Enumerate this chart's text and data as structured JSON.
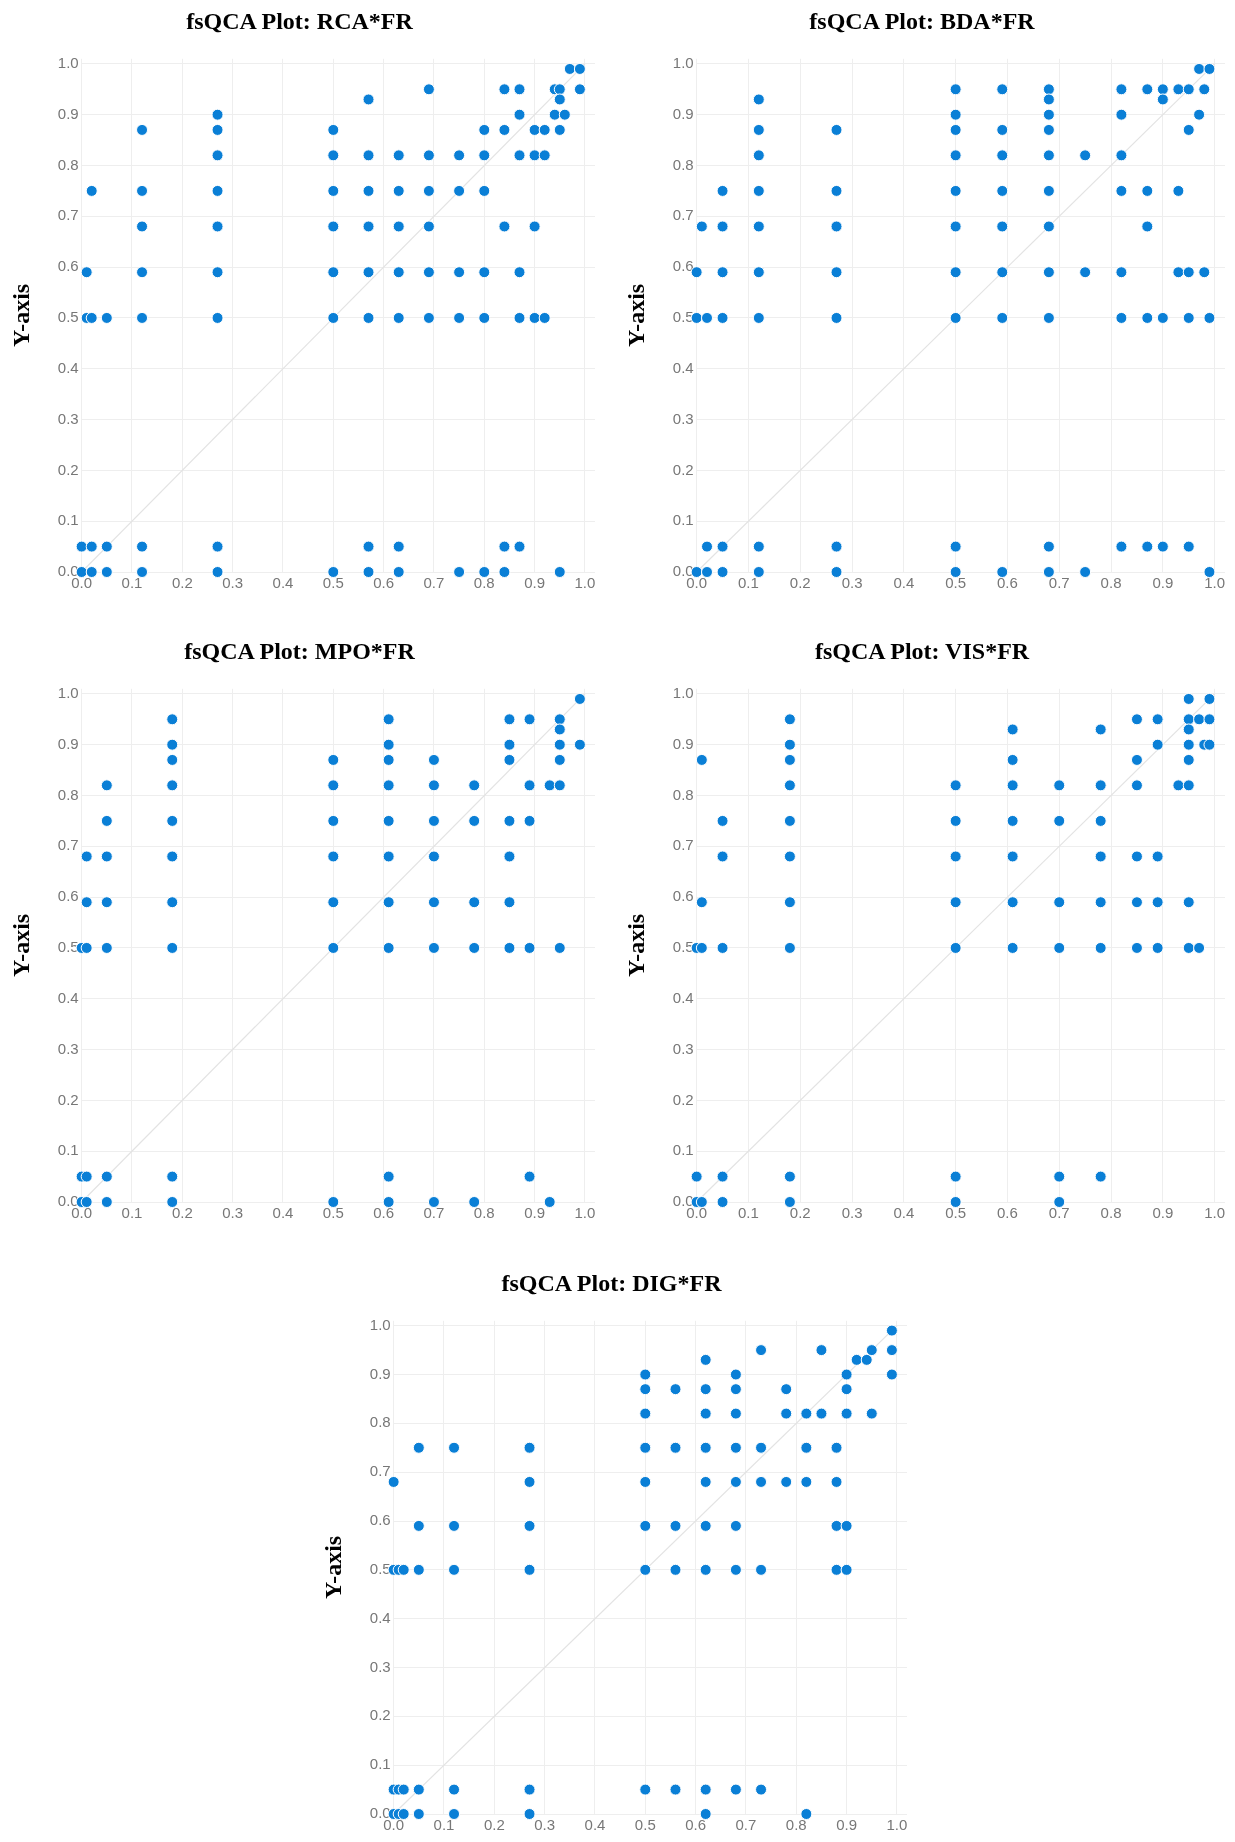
{
  "chart_data": [
    {
      "type": "scatter",
      "title": "fsQCA Plot: RCA*FR",
      "ylabel": "Y-axis",
      "xlim": [
        0,
        1.02
      ],
      "ylim": [
        0,
        1.01
      ],
      "grid": true,
      "legend": false,
      "marker": "circle",
      "xticks": [
        {
          "value": 0,
          "label": "0.0"
        },
        {
          "value": 0.1,
          "label": "0.1"
        },
        {
          "value": 0.2,
          "label": "0.2"
        },
        {
          "value": 0.3,
          "label": "0.3"
        },
        {
          "value": 0.4,
          "label": "0.4"
        },
        {
          "value": 0.5,
          "label": "0.5"
        },
        {
          "value": 0.6,
          "label": "0.6"
        },
        {
          "value": 0.7,
          "label": "0.7"
        },
        {
          "value": 0.8,
          "label": "0.8"
        },
        {
          "value": 0.9,
          "label": "0.9"
        },
        {
          "value": 1,
          "label": "1.0"
        }
      ],
      "yticks": [
        {
          "value": 0,
          "label": "0.0"
        },
        {
          "value": 0.1,
          "label": "0.1"
        },
        {
          "value": 0.2,
          "label": "0.2"
        },
        {
          "value": 0.3,
          "label": "0.3"
        },
        {
          "value": 0.4,
          "label": "0.4"
        },
        {
          "value": 0.5,
          "label": "0.5"
        },
        {
          "value": 0.6,
          "label": "0.6"
        },
        {
          "value": 0.7,
          "label": "0.7"
        },
        {
          "value": 0.8,
          "label": "0.8"
        },
        {
          "value": 0.9,
          "label": "0.9"
        },
        {
          "value": 1,
          "label": "1.0"
        }
      ],
      "series": [
        {
          "type": "line",
          "color": "#e3e3e3",
          "marker": "none",
          "x": [
            0,
            1
          ],
          "values": [
            0,
            1
          ]
        },
        {
          "color": "#0a7fd6",
          "x": [
            0,
            0,
            0.01,
            0.01,
            0.02,
            0.02,
            0.02,
            0.02,
            0.05,
            0.05,
            0.05,
            0.12,
            0.12,
            0.12,
            0.12,
            0.12,
            0.12,
            0.12,
            0.27,
            0.27,
            0.27,
            0.27,
            0.27,
            0.27,
            0.27,
            0.27,
            0.27,
            0.5,
            0.5,
            0.5,
            0.5,
            0.5,
            0.5,
            0.5,
            0.57,
            0.57,
            0.57,
            0.57,
            0.57,
            0.57,
            0.57,
            0.57,
            0.63,
            0.63,
            0.63,
            0.63,
            0.63,
            0.63,
            0.63,
            0.69,
            0.69,
            0.69,
            0.69,
            0.69,
            0.69,
            0.75,
            0.75,
            0.75,
            0.75,
            0.75,
            0.8,
            0.8,
            0.8,
            0.8,
            0.8,
            0.8,
            0.84,
            0.84,
            0.84,
            0.84,
            0.84,
            0.87,
            0.87,
            0.87,
            0.87,
            0.87,
            0.87,
            0.9,
            0.9,
            0.9,
            0.9,
            0.92,
            0.92,
            0.92,
            0.94,
            0.94,
            0.95,
            0.95,
            0.95,
            0.95,
            0.96,
            0.97,
            0.99,
            0.99
          ],
          "values": [
            0.05,
            0,
            0.59,
            0.5,
            0.75,
            0.5,
            0.05,
            0,
            0.5,
            0.05,
            0,
            0.87,
            0.75,
            0.68,
            0.59,
            0.5,
            0.05,
            0,
            0.9,
            0.87,
            0.82,
            0.75,
            0.68,
            0.59,
            0.5,
            0.05,
            0,
            0.87,
            0.82,
            0.75,
            0.68,
            0.59,
            0.5,
            0,
            0.93,
            0.82,
            0.75,
            0.68,
            0.59,
            0.5,
            0.05,
            0,
            0.82,
            0.75,
            0.68,
            0.59,
            0.5,
            0.05,
            0,
            0.95,
            0.82,
            0.75,
            0.68,
            0.59,
            0.5,
            0.82,
            0.75,
            0.59,
            0.5,
            0,
            0.87,
            0.82,
            0.75,
            0.59,
            0.5,
            0,
            0.95,
            0.87,
            0.68,
            0.05,
            0,
            0.95,
            0.9,
            0.82,
            0.59,
            0.5,
            0.05,
            0.87,
            0.82,
            0.68,
            0.5,
            0.87,
            0.82,
            0.5,
            0.95,
            0.9,
            0.95,
            0.93,
            0.87,
            0,
            0.9,
            0.99,
            0.99,
            0.95
          ]
        }
      ]
    },
    {
      "type": "scatter",
      "title": "fsQCA Plot: BDA*FR",
      "ylabel": "Y-axis",
      "xlim": [
        0,
        1.02
      ],
      "ylim": [
        0,
        1.01
      ],
      "grid": true,
      "legend": false,
      "marker": "circle",
      "xticks": [
        {
          "value": 0,
          "label": "0.0"
        },
        {
          "value": 0.1,
          "label": "0.1"
        },
        {
          "value": 0.2,
          "label": "0.2"
        },
        {
          "value": 0.3,
          "label": "0.3"
        },
        {
          "value": 0.4,
          "label": "0.4"
        },
        {
          "value": 0.5,
          "label": "0.5"
        },
        {
          "value": 0.6,
          "label": "0.6"
        },
        {
          "value": 0.7,
          "label": "0.7"
        },
        {
          "value": 0.8,
          "label": "0.8"
        },
        {
          "value": 0.9,
          "label": "0.9"
        },
        {
          "value": 1,
          "label": "1.0"
        }
      ],
      "yticks": [
        {
          "value": 0,
          "label": "0.0"
        },
        {
          "value": 0.1,
          "label": "0.1"
        },
        {
          "value": 0.2,
          "label": "0.2"
        },
        {
          "value": 0.3,
          "label": "0.3"
        },
        {
          "value": 0.4,
          "label": "0.4"
        },
        {
          "value": 0.5,
          "label": "0.5"
        },
        {
          "value": 0.6,
          "label": "0.6"
        },
        {
          "value": 0.7,
          "label": "0.7"
        },
        {
          "value": 0.8,
          "label": "0.8"
        },
        {
          "value": 0.9,
          "label": "0.9"
        },
        {
          "value": 1,
          "label": "1.0"
        }
      ],
      "series": [
        {
          "type": "line",
          "color": "#e3e3e3",
          "marker": "none",
          "x": [
            0,
            1
          ],
          "values": [
            0,
            1
          ]
        },
        {
          "color": "#0a7fd6",
          "x": [
            0,
            0,
            0,
            0.01,
            0.02,
            0.02,
            0.02,
            0.05,
            0.05,
            0.05,
            0.05,
            0.05,
            0.05,
            0.12,
            0.12,
            0.12,
            0.12,
            0.12,
            0.12,
            0.12,
            0.12,
            0.12,
            0.27,
            0.27,
            0.27,
            0.27,
            0.27,
            0.27,
            0.27,
            0.5,
            0.5,
            0.5,
            0.5,
            0.5,
            0.5,
            0.5,
            0.5,
            0.5,
            0.5,
            0.59,
            0.59,
            0.59,
            0.59,
            0.59,
            0.59,
            0.59,
            0.59,
            0.68,
            0.68,
            0.68,
            0.68,
            0.68,
            0.68,
            0.68,
            0.68,
            0.68,
            0.68,
            0.68,
            0.75,
            0.75,
            0.75,
            0.82,
            0.82,
            0.82,
            0.82,
            0.82,
            0.82,
            0.82,
            0.87,
            0.87,
            0.87,
            0.87,
            0.87,
            0.9,
            0.9,
            0.9,
            0.9,
            0.93,
            0.93,
            0.93,
            0.95,
            0.95,
            0.95,
            0.95,
            0.95,
            0.97,
            0.97,
            0.98,
            0.98,
            0.99,
            0.99,
            0.99
          ],
          "values": [
            0.59,
            0.5,
            0,
            0.68,
            0.5,
            0.05,
            0,
            0.75,
            0.68,
            0.59,
            0.5,
            0.05,
            0,
            0.93,
            0.87,
            0.82,
            0.75,
            0.68,
            0.59,
            0.5,
            0.05,
            0,
            0.87,
            0.75,
            0.68,
            0.59,
            0.5,
            0.05,
            0,
            0.95,
            0.9,
            0.87,
            0.82,
            0.75,
            0.68,
            0.59,
            0.5,
            0.05,
            0,
            0.95,
            0.87,
            0.82,
            0.75,
            0.68,
            0.59,
            0.5,
            0,
            0.95,
            0.93,
            0.9,
            0.87,
            0.82,
            0.75,
            0.68,
            0.59,
            0.5,
            0.05,
            0,
            0.82,
            0.59,
            0,
            0.95,
            0.9,
            0.82,
            0.75,
            0.59,
            0.5,
            0.05,
            0.95,
            0.75,
            0.68,
            0.5,
            0.05,
            0.95,
            0.93,
            0.5,
            0.05,
            0.95,
            0.75,
            0.59,
            0.95,
            0.87,
            0.59,
            0.5,
            0.05,
            0.99,
            0.9,
            0.95,
            0.59,
            0.99,
            0.5,
            0
          ]
        }
      ]
    },
    {
      "type": "scatter",
      "title": "fsQCA Plot: MPO*FR",
      "ylabel": "Y-axis",
      "xlim": [
        0,
        1.02
      ],
      "ylim": [
        0,
        1.01
      ],
      "grid": true,
      "legend": false,
      "marker": "circle",
      "xticks": [
        {
          "value": 0,
          "label": "0.0"
        },
        {
          "value": 0.1,
          "label": "0.1"
        },
        {
          "value": 0.2,
          "label": "0.2"
        },
        {
          "value": 0.3,
          "label": "0.3"
        },
        {
          "value": 0.4,
          "label": "0.4"
        },
        {
          "value": 0.5,
          "label": "0.5"
        },
        {
          "value": 0.6,
          "label": "0.6"
        },
        {
          "value": 0.7,
          "label": "0.7"
        },
        {
          "value": 0.8,
          "label": "0.8"
        },
        {
          "value": 0.9,
          "label": "0.9"
        },
        {
          "value": 1,
          "label": "1.0"
        }
      ],
      "yticks": [
        {
          "value": 0,
          "label": "0.0"
        },
        {
          "value": 0.1,
          "label": "0.1"
        },
        {
          "value": 0.2,
          "label": "0.2"
        },
        {
          "value": 0.3,
          "label": "0.3"
        },
        {
          "value": 0.4,
          "label": "0.4"
        },
        {
          "value": 0.5,
          "label": "0.5"
        },
        {
          "value": 0.6,
          "label": "0.6"
        },
        {
          "value": 0.7,
          "label": "0.7"
        },
        {
          "value": 0.8,
          "label": "0.8"
        },
        {
          "value": 0.9,
          "label": "0.9"
        },
        {
          "value": 1,
          "label": "1.0"
        }
      ],
      "series": [
        {
          "type": "line",
          "color": "#e3e3e3",
          "marker": "none",
          "x": [
            0,
            1
          ],
          "values": [
            0,
            1
          ]
        },
        {
          "color": "#0a7fd6",
          "x": [
            0,
            0,
            0,
            0.01,
            0.01,
            0.01,
            0.01,
            0.01,
            0.05,
            0.05,
            0.05,
            0.05,
            0.05,
            0.05,
            0.05,
            0.18,
            0.18,
            0.18,
            0.18,
            0.18,
            0.18,
            0.18,
            0.18,
            0.18,
            0.18,
            0.5,
            0.5,
            0.5,
            0.5,
            0.5,
            0.5,
            0.5,
            0.61,
            0.61,
            0.61,
            0.61,
            0.61,
            0.61,
            0.61,
            0.61,
            0.61,
            0.61,
            0.7,
            0.7,
            0.7,
            0.7,
            0.7,
            0.7,
            0.7,
            0.78,
            0.78,
            0.78,
            0.78,
            0.78,
            0.85,
            0.85,
            0.85,
            0.85,
            0.85,
            0.85,
            0.85,
            0.89,
            0.89,
            0.89,
            0.89,
            0.89,
            0.93,
            0.93,
            0.95,
            0.95,
            0.95,
            0.95,
            0.95,
            0.95,
            0.99,
            0.99
          ],
          "values": [
            0.5,
            0.05,
            0,
            0.68,
            0.59,
            0.5,
            0.05,
            0,
            0.82,
            0.75,
            0.68,
            0.59,
            0.5,
            0.05,
            0,
            0.95,
            0.9,
            0.87,
            0.82,
            0.75,
            0.68,
            0.59,
            0.5,
            0.05,
            0,
            0.87,
            0.82,
            0.75,
            0.68,
            0.59,
            0.5,
            0,
            0.95,
            0.9,
            0.87,
            0.82,
            0.75,
            0.68,
            0.59,
            0.5,
            0.05,
            0,
            0.87,
            0.82,
            0.75,
            0.68,
            0.59,
            0.5,
            0,
            0.82,
            0.75,
            0.59,
            0.5,
            0,
            0.95,
            0.9,
            0.87,
            0.75,
            0.68,
            0.59,
            0.5,
            0.95,
            0.82,
            0.75,
            0.5,
            0.05,
            0.82,
            0,
            0.95,
            0.93,
            0.9,
            0.87,
            0.82,
            0.5,
            0.99,
            0.9
          ]
        }
      ]
    },
    {
      "type": "scatter",
      "title": "fsQCA Plot: VIS*FR",
      "ylabel": "Y-axis",
      "xlim": [
        0,
        1.02
      ],
      "ylim": [
        0,
        1.01
      ],
      "grid": true,
      "legend": false,
      "marker": "circle",
      "xticks": [
        {
          "value": 0,
          "label": "0.0"
        },
        {
          "value": 0.1,
          "label": "0.1"
        },
        {
          "value": 0.2,
          "label": "0.2"
        },
        {
          "value": 0.3,
          "label": "0.3"
        },
        {
          "value": 0.4,
          "label": "0.4"
        },
        {
          "value": 0.5,
          "label": "0.5"
        },
        {
          "value": 0.6,
          "label": "0.6"
        },
        {
          "value": 0.7,
          "label": "0.7"
        },
        {
          "value": 0.8,
          "label": "0.8"
        },
        {
          "value": 0.9,
          "label": "0.9"
        },
        {
          "value": 1,
          "label": "1.0"
        }
      ],
      "yticks": [
        {
          "value": 0,
          "label": "0.0"
        },
        {
          "value": 0.1,
          "label": "0.1"
        },
        {
          "value": 0.2,
          "label": "0.2"
        },
        {
          "value": 0.3,
          "label": "0.3"
        },
        {
          "value": 0.4,
          "label": "0.4"
        },
        {
          "value": 0.5,
          "label": "0.5"
        },
        {
          "value": 0.6,
          "label": "0.6"
        },
        {
          "value": 0.7,
          "label": "0.7"
        },
        {
          "value": 0.8,
          "label": "0.8"
        },
        {
          "value": 0.9,
          "label": "0.9"
        },
        {
          "value": 1,
          "label": "1.0"
        }
      ],
      "series": [
        {
          "type": "line",
          "color": "#e3e3e3",
          "marker": "none",
          "x": [
            0,
            1
          ],
          "values": [
            0,
            1
          ]
        },
        {
          "color": "#0a7fd6",
          "x": [
            0,
            0,
            0,
            0.01,
            0.01,
            0.01,
            0.01,
            0.05,
            0.05,
            0.05,
            0.05,
            0.05,
            0.18,
            0.18,
            0.18,
            0.18,
            0.18,
            0.18,
            0.18,
            0.18,
            0.18,
            0.18,
            0.5,
            0.5,
            0.5,
            0.5,
            0.5,
            0.5,
            0.5,
            0.61,
            0.61,
            0.61,
            0.61,
            0.61,
            0.61,
            0.61,
            0.7,
            0.7,
            0.7,
            0.7,
            0.7,
            0.7,
            0.78,
            0.78,
            0.78,
            0.78,
            0.78,
            0.78,
            0.78,
            0.85,
            0.85,
            0.85,
            0.85,
            0.85,
            0.85,
            0.89,
            0.89,
            0.89,
            0.89,
            0.89,
            0.93,
            0.95,
            0.95,
            0.95,
            0.95,
            0.95,
            0.95,
            0.95,
            0.95,
            0.97,
            0.97,
            0.98,
            0.99,
            0.99,
            0.99
          ],
          "values": [
            0.5,
            0.05,
            0,
            0.87,
            0.59,
            0.5,
            0,
            0.75,
            0.68,
            0.5,
            0.05,
            0,
            0.95,
            0.9,
            0.87,
            0.82,
            0.75,
            0.68,
            0.59,
            0.5,
            0.05,
            0,
            0.82,
            0.75,
            0.68,
            0.59,
            0.5,
            0.05,
            0,
            0.93,
            0.87,
            0.82,
            0.75,
            0.68,
            0.59,
            0.5,
            0.82,
            0.75,
            0.59,
            0.5,
            0.05,
            0,
            0.93,
            0.82,
            0.75,
            0.68,
            0.59,
            0.5,
            0.05,
            0.95,
            0.87,
            0.82,
            0.68,
            0.59,
            0.5,
            0.95,
            0.9,
            0.68,
            0.59,
            0.5,
            0.82,
            0.99,
            0.95,
            0.93,
            0.9,
            0.87,
            0.82,
            0.59,
            0.5,
            0.95,
            0.5,
            0.9,
            0.99,
            0.95,
            0.9
          ]
        }
      ]
    },
    {
      "type": "scatter",
      "title": "fsQCA Plot: DIG*FR",
      "ylabel": "Y-axis",
      "xlim": [
        0,
        1.02
      ],
      "ylim": [
        0,
        1.01
      ],
      "grid": true,
      "legend": false,
      "marker": "circle",
      "xticks": [
        {
          "value": 0,
          "label": "0.0"
        },
        {
          "value": 0.1,
          "label": "0.1"
        },
        {
          "value": 0.2,
          "label": "0.2"
        },
        {
          "value": 0.3,
          "label": "0.3"
        },
        {
          "value": 0.4,
          "label": "0.4"
        },
        {
          "value": 0.5,
          "label": "0.5"
        },
        {
          "value": 0.6,
          "label": "0.6"
        },
        {
          "value": 0.7,
          "label": "0.7"
        },
        {
          "value": 0.8,
          "label": "0.8"
        },
        {
          "value": 0.9,
          "label": "0.9"
        },
        {
          "value": 1,
          "label": "1.0"
        }
      ],
      "yticks": [
        {
          "value": 0,
          "label": "0.0"
        },
        {
          "value": 0.1,
          "label": "0.1"
        },
        {
          "value": 0.2,
          "label": "0.2"
        },
        {
          "value": 0.3,
          "label": "0.3"
        },
        {
          "value": 0.4,
          "label": "0.4"
        },
        {
          "value": 0.5,
          "label": "0.5"
        },
        {
          "value": 0.6,
          "label": "0.6"
        },
        {
          "value": 0.7,
          "label": "0.7"
        },
        {
          "value": 0.8,
          "label": "0.8"
        },
        {
          "value": 0.9,
          "label": "0.9"
        },
        {
          "value": 1,
          "label": "1.0"
        }
      ],
      "series": [
        {
          "type": "line",
          "color": "#e3e3e3",
          "marker": "none",
          "x": [
            0,
            1
          ],
          "values": [
            0,
            1
          ]
        },
        {
          "color": "#0a7fd6",
          "x": [
            0,
            0,
            0,
            0,
            0.01,
            0.01,
            0.01,
            0.02,
            0.02,
            0.02,
            0.05,
            0.05,
            0.05,
            0.05,
            0.05,
            0.12,
            0.12,
            0.12,
            0.12,
            0.12,
            0.27,
            0.27,
            0.27,
            0.27,
            0.27,
            0.27,
            0.5,
            0.5,
            0.5,
            0.5,
            0.5,
            0.5,
            0.5,
            0.5,
            0.56,
            0.56,
            0.56,
            0.56,
            0.56,
            0.62,
            0.62,
            0.62,
            0.62,
            0.62,
            0.62,
            0.62,
            0.62,
            0.62,
            0.68,
            0.68,
            0.68,
            0.68,
            0.68,
            0.68,
            0.68,
            0.68,
            0.73,
            0.73,
            0.73,
            0.73,
            0.73,
            0.78,
            0.78,
            0.78,
            0.82,
            0.82,
            0.82,
            0.82,
            0.85,
            0.85,
            0.88,
            0.88,
            0.88,
            0.88,
            0.9,
            0.9,
            0.9,
            0.9,
            0.9,
            0.92,
            0.94,
            0.95,
            0.95,
            0.99,
            0.99,
            0.99
          ],
          "values": [
            0.68,
            0.5,
            0.05,
            0,
            0.5,
            0.05,
            0,
            0.5,
            0.05,
            0,
            0.75,
            0.59,
            0.5,
            0.05,
            0,
            0.75,
            0.59,
            0.5,
            0.05,
            0,
            0.75,
            0.68,
            0.59,
            0.5,
            0.05,
            0,
            0.9,
            0.87,
            0.82,
            0.75,
            0.68,
            0.59,
            0.5,
            0.05,
            0.87,
            0.75,
            0.59,
            0.5,
            0.05,
            0.93,
            0.87,
            0.82,
            0.75,
            0.68,
            0.59,
            0.5,
            0.05,
            0,
            0.9,
            0.87,
            0.82,
            0.75,
            0.68,
            0.59,
            0.5,
            0.05,
            0.95,
            0.75,
            0.68,
            0.5,
            0.05,
            0.87,
            0.82,
            0.68,
            0.82,
            0.75,
            0.68,
            0,
            0.95,
            0.82,
            0.75,
            0.68,
            0.59,
            0.5,
            0.9,
            0.87,
            0.82,
            0.59,
            0.5,
            0.93,
            0.93,
            0.95,
            0.82,
            0.99,
            0.95,
            0.9
          ]
        }
      ]
    }
  ]
}
